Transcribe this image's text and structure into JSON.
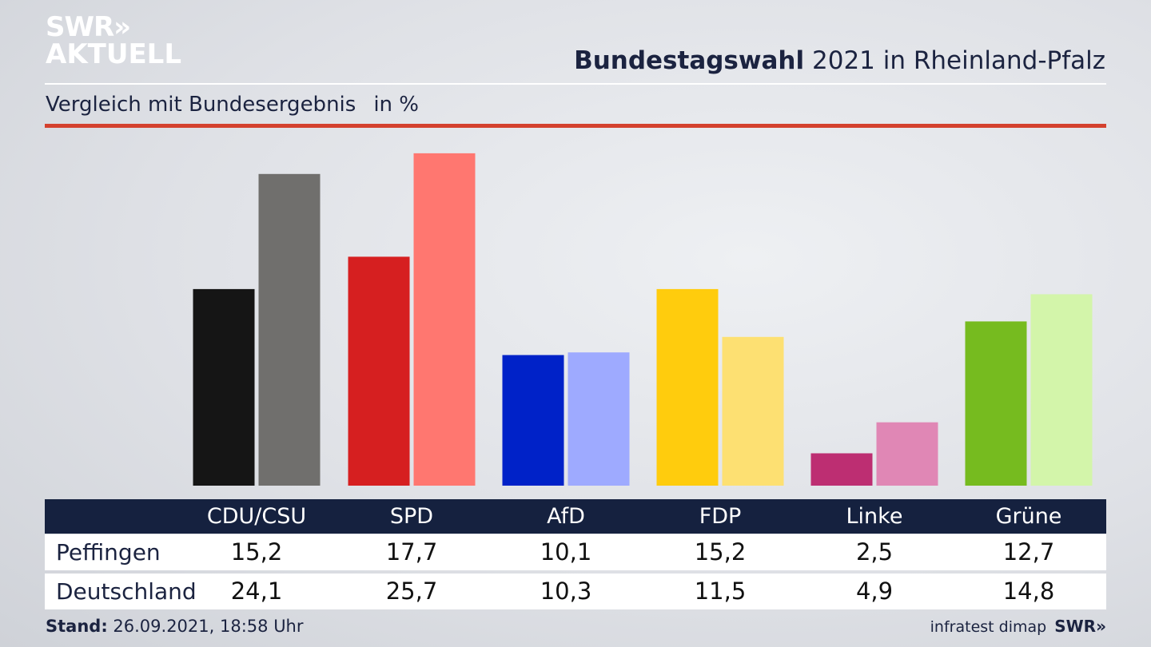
{
  "logo": {
    "line1": "SWR»",
    "line2": "AKTUELL"
  },
  "title": {
    "bold": "Bundestagswahl",
    "rest": "2021 in Rheinland-Pfalz"
  },
  "subtitle": {
    "text": "Vergleich mit Bundesergebnis",
    "unit": "in %"
  },
  "footer": {
    "stand_label": "Stand:",
    "stand_value": "26.09.2021, 18:58 Uhr",
    "source": "infratest dimap",
    "brand": "SWR»"
  },
  "table": {
    "headers": [
      "CDU/CSU",
      "SPD",
      "AfD",
      "FDP",
      "Linke",
      "Grüne"
    ],
    "rows": [
      {
        "label": "Peffingen",
        "values": [
          "15,2",
          "17,7",
          "10,1",
          "15,2",
          "2,5",
          "12,7"
        ]
      },
      {
        "label": "Deutschland",
        "values": [
          "24,1",
          "25,7",
          "10,3",
          "11,5",
          "4,9",
          "14,8"
        ]
      }
    ]
  },
  "chart_data": {
    "type": "bar",
    "categories": [
      "CDU/CSU",
      "SPD",
      "AfD",
      "FDP",
      "Linke",
      "Grüne"
    ],
    "series": [
      {
        "name": "Peffingen",
        "values": [
          15.2,
          17.7,
          10.1,
          15.2,
          2.5,
          12.7
        ],
        "colors": [
          "#151515",
          "#d61f20",
          "#0022c8",
          "#ffcc0d",
          "#bd2e72",
          "#76bb1f"
        ]
      },
      {
        "name": "Deutschland",
        "values": [
          24.1,
          25.7,
          10.3,
          11.5,
          4.9,
          14.8
        ],
        "colors": [
          "#706f6d",
          "#ff7770",
          "#9eaaff",
          "#fde072",
          "#e087b5",
          "#d3f5aa"
        ]
      }
    ],
    "title": "Bundestagswahl 2021 in Rheinland-Pfalz",
    "ylabel": "in %",
    "ylim": [
      0,
      26.0
    ],
    "grid": false,
    "legend": "table-below"
  }
}
